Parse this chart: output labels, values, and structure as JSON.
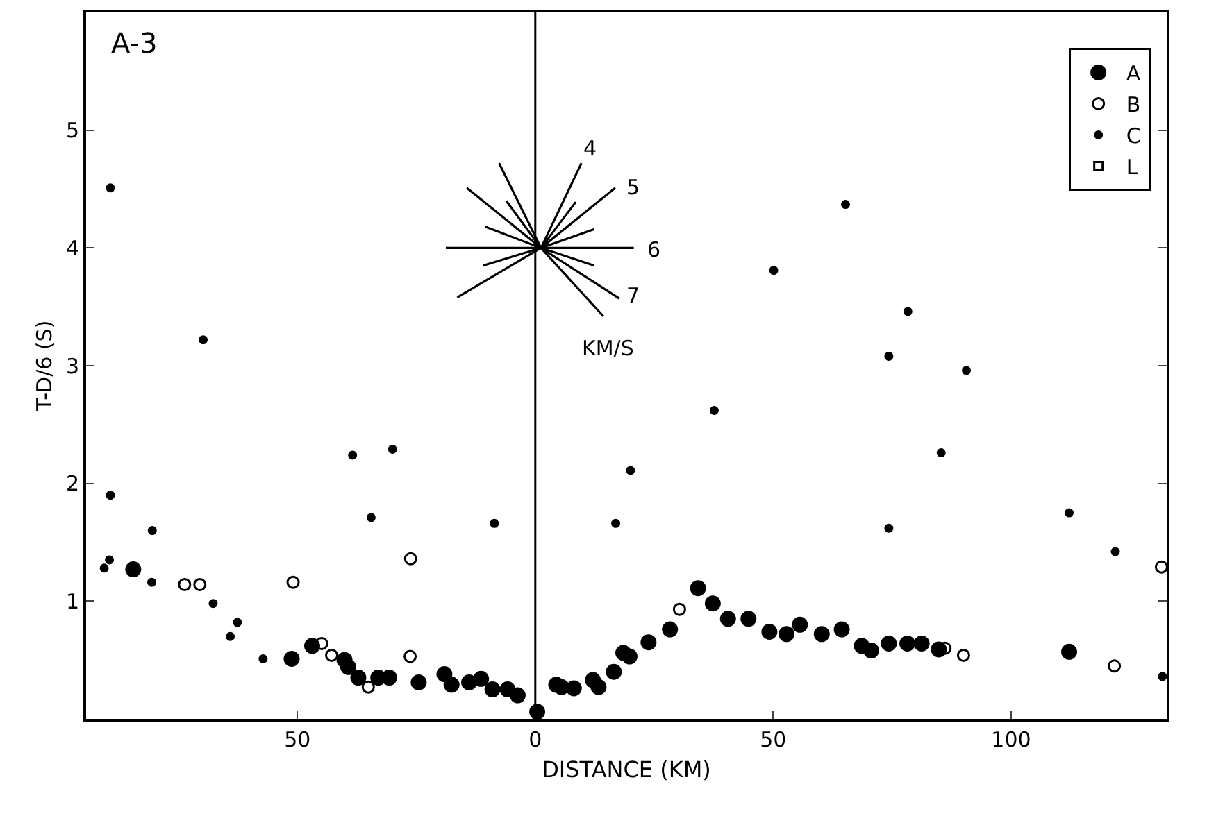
{
  "chart_data": {
    "type": "scatter",
    "title": "A-3",
    "xlabel": "DISTANCE (KM)",
    "ylabel": "T-D/6 (S)",
    "xlim": [
      -94.4,
      132.7
    ],
    "xticks": [
      {
        "value": -50,
        "label": "50"
      },
      0,
      50,
      100
    ],
    "ylim": [
      0,
      6
    ],
    "yticks": [
      1,
      2,
      3,
      4,
      5
    ],
    "legend": "top right",
    "marker": "circle",
    "ref_lines": [
      {
        "axis": "x",
        "value": 0,
        "color": "#000000"
      }
    ],
    "series": [
      {
        "name": "A",
        "color": "#000000",
        "x": [
          -84.5,
          -51.2,
          -46.9,
          -40.1,
          -39.3,
          -37.2,
          -33.0,
          -30.7,
          -24.5,
          -19.1,
          -17.6,
          -13.9,
          -11.4,
          -9.0,
          -5.8,
          -3.7,
          0.4,
          4.4,
          5.5,
          8.1,
          12.1,
          13.3,
          16.5,
          18.5,
          19.8,
          23.8,
          28.3,
          34.2,
          37.3,
          40.5,
          44.8,
          49.2,
          52.8,
          55.6,
          60.2,
          64.4,
          68.6,
          70.6,
          74.3,
          78.2,
          81.2,
          84.8,
          112.2
        ],
        "values": [
          1.27,
          0.51,
          0.62,
          0.5,
          0.44,
          0.35,
          0.35,
          0.35,
          0.31,
          0.38,
          0.29,
          0.31,
          0.34,
          0.25,
          0.25,
          0.2,
          0.06,
          0.29,
          0.27,
          0.26,
          0.33,
          0.27,
          0.4,
          0.56,
          0.53,
          0.65,
          0.76,
          1.11,
          0.98,
          0.85,
          0.85,
          0.74,
          0.72,
          0.8,
          0.72,
          0.76,
          0.62,
          0.58,
          0.64,
          0.64,
          0.64,
          0.59,
          0.57
        ]
      },
      {
        "name": "B",
        "color": "#000000",
        "x": [
          -73.7,
          -70.5,
          -50.9,
          -44.9,
          -42.8,
          -35.1,
          -26.3,
          -26.2,
          30.3,
          86.1,
          90.0,
          121.7,
          131.6
        ],
        "values": [
          1.14,
          1.14,
          1.16,
          0.64,
          0.54,
          0.27,
          0.53,
          1.36,
          0.93,
          0.6,
          0.54,
          0.45,
          1.29
        ]
      },
      {
        "name": "C",
        "color": "#000000",
        "x": [
          -89.3,
          -80.5,
          -90.6,
          -89.5,
          -80.6,
          -67.7,
          -62.6,
          -64.1,
          -57.2,
          -38.4,
          -30.0,
          -34.5,
          -8.6,
          -89.3,
          -69.8,
          16.9,
          20.0,
          85.3,
          74.3,
          112.2,
          121.9,
          131.8,
          65.2,
          50.1,
          78.3,
          74.3,
          90.6,
          37.6
        ],
        "values": [
          1.9,
          1.6,
          1.28,
          1.35,
          1.16,
          0.98,
          0.82,
          0.7,
          0.51,
          2.24,
          2.29,
          1.71,
          1.66,
          4.51,
          3.22,
          1.66,
          2.11,
          2.26,
          1.62,
          1.75,
          1.42,
          0.36,
          4.37,
          3.81,
          3.46,
          3.08,
          2.96,
          2.62
        ]
      },
      {
        "name": "L",
        "color": "#000000",
        "marker": "square"
      },
      {
        "type": "line",
        "marker": "none",
        "color": "#000000",
        "x": [
          -7.6,
          1.2,
          9.7
        ],
        "values": [
          4.72,
          4.0,
          4.72
        ]
      },
      {
        "type": "line",
        "marker": "none",
        "color": "#000000",
        "x": [
          -6.1,
          1.2,
          8.5
        ],
        "values": [
          4.4,
          4.0,
          4.39
        ]
      },
      {
        "type": "line",
        "marker": "none",
        "color": "#000000",
        "x": [
          -14.4,
          1.2,
          16.8
        ],
        "values": [
          4.51,
          4.0,
          4.51
        ]
      },
      {
        "type": "line",
        "marker": "none",
        "color": "#000000",
        "x": [
          -10.5,
          1.2,
          12.4
        ],
        "values": [
          4.18,
          4.0,
          4.16
        ]
      },
      {
        "type": "line",
        "marker": "none",
        "color": "#000000",
        "x": [
          -18.8,
          1.2,
          20.7
        ],
        "values": [
          4.0,
          4.0,
          4.0
        ]
      },
      {
        "type": "line",
        "marker": "none",
        "color": "#000000",
        "x": [
          -11.0,
          1.2,
          12.4
        ],
        "values": [
          3.85,
          4.0,
          3.85
        ]
      },
      {
        "type": "line",
        "marker": "none",
        "color": "#000000",
        "x": [
          -16.4,
          1.2,
          17.7
        ],
        "values": [
          3.58,
          4.0,
          3.57
        ]
      },
      {
        "type": "line",
        "marker": "none",
        "color": "#000000",
        "x": [
          1.2,
          14.3
        ],
        "values": [
          4.0,
          3.42
        ]
      }
    ],
    "annotations": [
      "4",
      "5",
      "6",
      "7",
      "KM/S"
    ]
  }
}
